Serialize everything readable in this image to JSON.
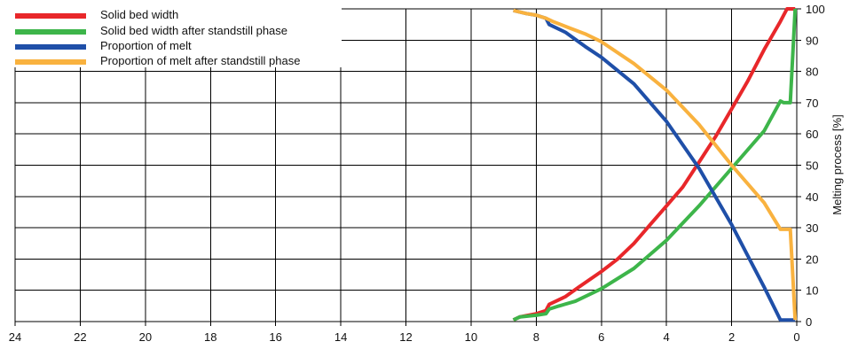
{
  "chart_data": {
    "type": "line",
    "xlabel": "",
    "ylabel": "Melting process [%]",
    "xlim": [
      24,
      0
    ],
    "ylim": [
      0,
      100
    ],
    "x_axis_reversed": true,
    "y_axis_position": "right",
    "grid": true,
    "legend_position": "top-left",
    "x_ticks": [
      "24",
      "22",
      "20",
      "18",
      "16",
      "14",
      "12",
      "10",
      "8",
      "6",
      "4",
      "2",
      "0"
    ],
    "y_ticks": [
      "0",
      "10",
      "20",
      "30",
      "40",
      "50",
      "60",
      "70",
      "80",
      "90",
      "100"
    ],
    "series": [
      {
        "name": "Solid bed width",
        "color": "#e8272a",
        "x": [
          8.7,
          8.5,
          8.0,
          7.7,
          7.6,
          7.4,
          7.1,
          6.7,
          6.0,
          5.5,
          5.0,
          4.5,
          4.0,
          3.5,
          3.0,
          2.5,
          2.0,
          1.5,
          1.0,
          0.5,
          0.3,
          0.05
        ],
        "y": [
          0.5,
          1.5,
          2.5,
          3.5,
          5.5,
          6.5,
          8,
          11,
          16,
          20,
          25,
          31,
          37,
          43,
          51,
          59,
          68,
          77,
          87,
          96,
          100,
          100
        ]
      },
      {
        "name": "Solid bed width after standstill phase",
        "color": "#3db54a",
        "x": [
          8.7,
          8.5,
          8.0,
          7.7,
          7.6,
          7.3,
          6.8,
          6.0,
          5.0,
          4.0,
          3.0,
          2.0,
          1.0,
          0.5,
          0.4,
          0.2,
          0.05
        ],
        "y": [
          0.5,
          1.5,
          2.0,
          2.5,
          4,
          5,
          6.5,
          10.5,
          17,
          26,
          37,
          49,
          61,
          70.5,
          70,
          70,
          100
        ]
      },
      {
        "name": "Proportion of melt",
        "color": "#1f4fa8",
        "x": [
          8.7,
          8.3,
          8.0,
          7.7,
          7.6,
          7.1,
          6.5,
          6.0,
          5.0,
          4.0,
          3.0,
          2.0,
          1.5,
          1.0,
          0.5,
          0.3,
          0.05
        ],
        "y": [
          99.5,
          98.5,
          98,
          97,
          95,
          92.5,
          88,
          84.5,
          76,
          64,
          49,
          31,
          21,
          11,
          0.5,
          0.5,
          0.5
        ]
      },
      {
        "name": "Proportion of melt after standstill phase",
        "color": "#f9b23f",
        "x": [
          8.7,
          8.3,
          8.0,
          7.7,
          7.5,
          7.0,
          6.5,
          6.0,
          5.0,
          4.0,
          3.0,
          2.0,
          1.0,
          0.5,
          0.4,
          0.2,
          0.05
        ],
        "y": [
          99.5,
          98.5,
          98,
          97,
          96,
          94,
          92,
          89.5,
          82.5,
          74,
          63,
          50,
          38,
          29.5,
          29.5,
          29.5,
          0.5
        ]
      }
    ]
  }
}
